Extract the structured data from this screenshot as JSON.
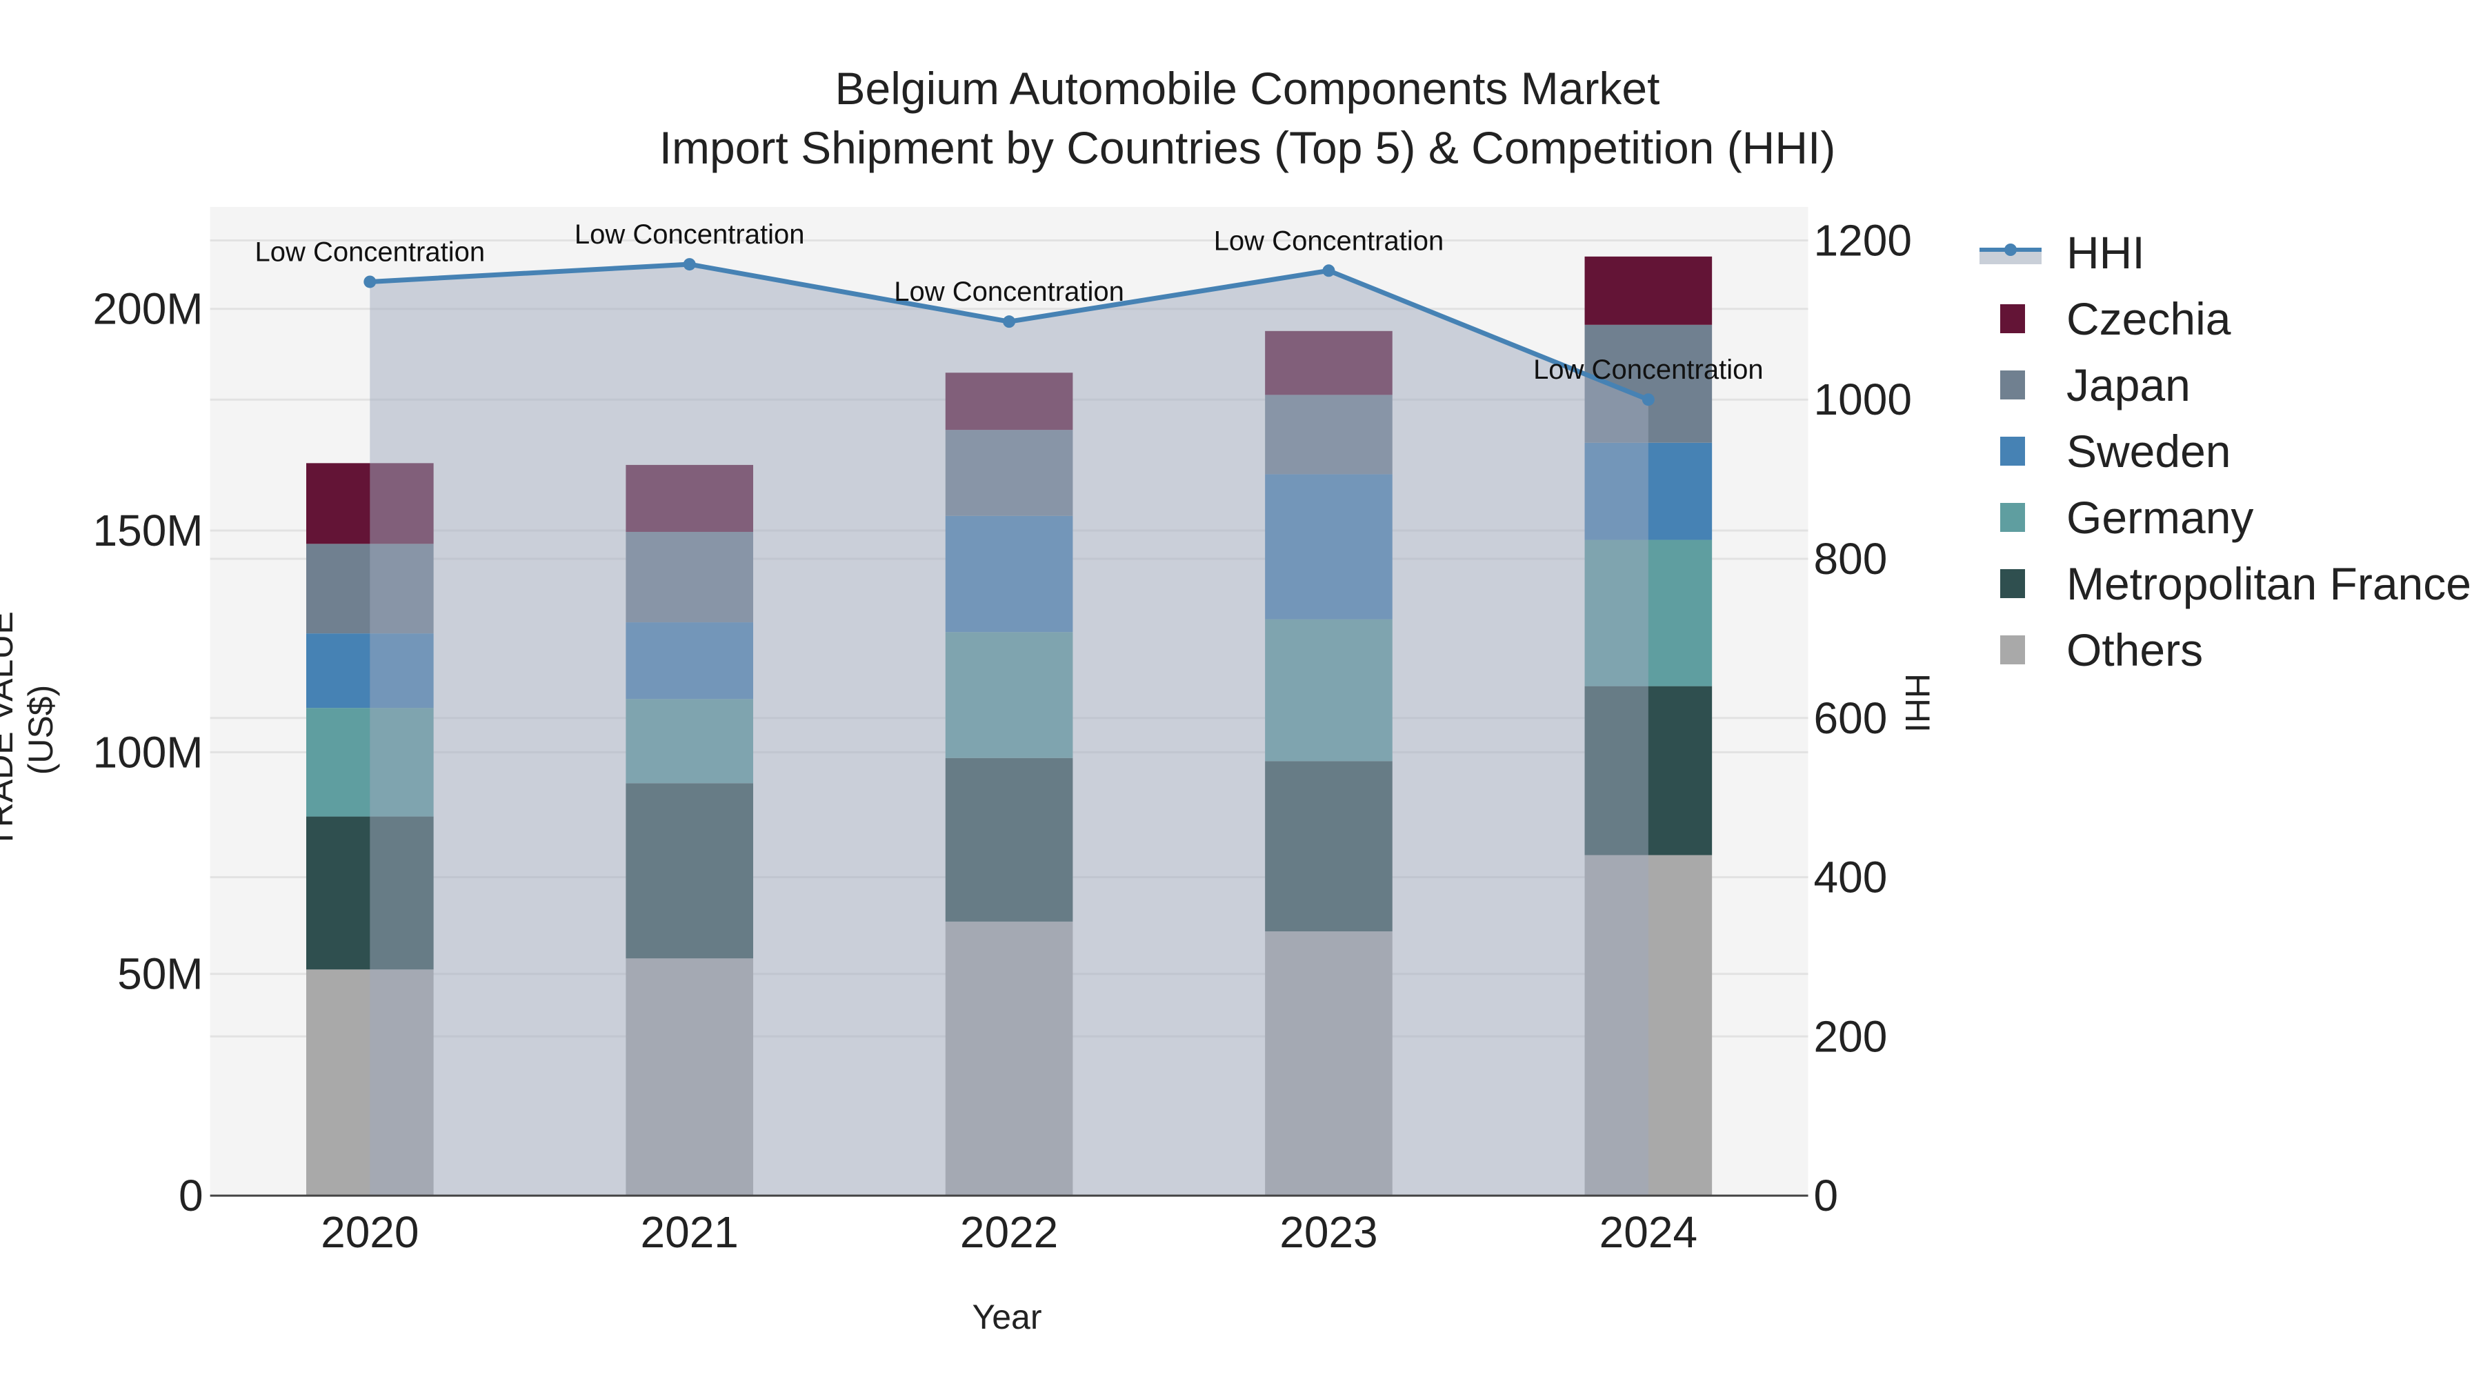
{
  "title": {
    "line1": "Belgium Automobile Components Market",
    "line2": "Import Shipment by Countries (Top 5) & Competition (HHI)"
  },
  "axes": {
    "x_title": "Year",
    "y_left_title": "TRADE VALUE (US$)",
    "y_right_title": "HHI",
    "y_left_ticks": [
      "0",
      "50M",
      "100M",
      "150M",
      "200M"
    ],
    "y_right_ticks": [
      "0",
      "200",
      "400",
      "600",
      "800",
      "1000",
      "1200"
    ],
    "x_ticks": [
      "2020",
      "2021",
      "2022",
      "2023",
      "2024"
    ]
  },
  "legend": [
    {
      "name": "HHI",
      "color": "#4682B4",
      "kind": "line"
    },
    {
      "name": "Czechia",
      "color": "#631436",
      "kind": "bar"
    },
    {
      "name": "Japan",
      "color": "#708090",
      "kind": "bar"
    },
    {
      "name": "Sweden",
      "color": "#4682B4",
      "kind": "bar"
    },
    {
      "name": "Germany",
      "color": "#5F9EA0",
      "kind": "bar"
    },
    {
      "name": "Metropolitan France",
      "color": "#2F4F4F",
      "kind": "bar"
    },
    {
      "name": "Others",
      "color": "#A9A9A9",
      "kind": "bar"
    }
  ],
  "annotations": [
    "Low Concentration",
    "Low Concentration",
    "Low Concentration",
    "Low Concentration",
    "Low Concentration"
  ],
  "chart_data": {
    "type": "bar",
    "stacked": true,
    "title": "Belgium Automobile Components Market — Import Shipment by Countries (Top 5) & Competition (HHI)",
    "xlabel": "Year",
    "ylabel": "TRADE VALUE (US$)",
    "y2label": "HHI",
    "categories": [
      "2020",
      "2021",
      "2022",
      "2023",
      "2024"
    ],
    "ylim": [
      0,
      223000000
    ],
    "y2lim": [
      0,
      1240
    ],
    "series": [
      {
        "name": "Others",
        "color": "#A9A9A9",
        "values": [
          51000000,
          53500000,
          61800000,
          59600000,
          76800000
        ]
      },
      {
        "name": "Metropolitan France",
        "color": "#2F4F4F",
        "values": [
          34500000,
          39500000,
          36900000,
          38400000,
          38100000
        ]
      },
      {
        "name": "Germany",
        "color": "#5F9EA0",
        "values": [
          24500000,
          19000000,
          28400000,
          32000000,
          33000000
        ]
      },
      {
        "name": "Sweden",
        "color": "#4682B4",
        "values": [
          16800000,
          17300000,
          26200000,
          32700000,
          21900000
        ]
      },
      {
        "name": "Japan",
        "color": "#708090",
        "values": [
          20200000,
          20400000,
          19400000,
          17900000,
          26600000
        ]
      },
      {
        "name": "Czechia",
        "color": "#631436",
        "values": [
          18200000,
          15100000,
          12900000,
          14400000,
          15400000
        ]
      }
    ],
    "line_series": {
      "name": "HHI",
      "axis": "right",
      "color": "#4682B4",
      "fill": "tozeroy",
      "values": [
        1148,
        1170,
        1098,
        1162,
        1000
      ],
      "labels": [
        "Low Concentration",
        "Low Concentration",
        "Low Concentration",
        "Low Concentration",
        "Low Concentration"
      ]
    },
    "grid": true,
    "legend_position": "right"
  }
}
